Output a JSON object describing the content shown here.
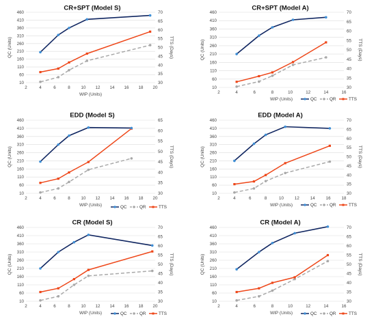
{
  "colors": {
    "QC": "#0f2560",
    "QR": "#a8a8a8",
    "TTS": "#ee4618",
    "QC_marker": "#3e8fd6",
    "QR_marker": "#a8a8a8",
    "TTS_marker": "#ee4618"
  },
  "chart_data": [
    {
      "type": "line",
      "title": "CR+SPT (Model S)",
      "xlabel": "WIP (Units)",
      "ylabel": "QC (Units)",
      "y2label": "TTS (Days)",
      "xlim": [
        2,
        20
      ],
      "xticks": [
        2,
        4,
        6,
        8,
        10,
        12,
        14,
        16,
        18,
        20
      ],
      "ylim": [
        10,
        460
      ],
      "yticks": [
        "10",
        "60",
        "110",
        "160",
        "210",
        "260",
        "310",
        "360",
        "410",
        "460"
      ],
      "y2lim": [
        30,
        70
      ],
      "y2ticks": [
        "30",
        "35",
        "40",
        "45",
        "50",
        "55",
        "60",
        "65",
        "70"
      ],
      "legend_position": "none",
      "series": [
        {
          "name": "QC",
          "axis": "left",
          "dashed": false,
          "x": [
            4,
            6.5,
            8,
            10.5,
            19.3
          ],
          "y": [
            205,
            315,
            360,
            415,
            440
          ]
        },
        {
          "name": "QR",
          "axis": "left",
          "dashed": true,
          "x": [
            4,
            6.5,
            8,
            10.5,
            19.3
          ],
          "y": [
            15,
            45,
            90,
            150,
            250
          ]
        },
        {
          "name": "TTS",
          "axis": "right",
          "dashed": false,
          "x": [
            4,
            6.5,
            8,
            10.5,
            19.3
          ],
          "y": [
            36,
            38,
            41.5,
            46.5,
            59
          ]
        }
      ]
    },
    {
      "type": "line",
      "title": "CR+SPT (Model A)",
      "xlabel": "WIP (Units)",
      "ylabel": "QC (Units)",
      "y2label": "TTS (Days)",
      "xlim": [
        2,
        16
      ],
      "xticks": [
        2,
        4,
        6,
        8,
        10,
        12,
        14,
        16
      ],
      "ylim": [
        10,
        460
      ],
      "yticks": [
        "10",
        "60",
        "110",
        "160",
        "210",
        "260",
        "310",
        "360",
        "410",
        "460"
      ],
      "y2lim": [
        30,
        70
      ],
      "y2ticks": [
        "30",
        "35",
        "40",
        "45",
        "50",
        "55",
        "60",
        "65",
        "70"
      ],
      "legend_position": "bottom-right",
      "legend": [
        "QC",
        "QR",
        "TTS"
      ],
      "series": [
        {
          "name": "QC",
          "axis": "left",
          "dashed": false,
          "x": [
            4,
            6.5,
            8,
            10.3,
            14
          ],
          "y": [
            210,
            320,
            370,
            415,
            430
          ]
        },
        {
          "name": "QR",
          "axis": "left",
          "dashed": true,
          "x": [
            4,
            6.5,
            8,
            10.3,
            14
          ],
          "y": [
            15,
            45,
            80,
            145,
            190
          ]
        },
        {
          "name": "TTS",
          "axis": "right",
          "dashed": false,
          "x": [
            4,
            6.5,
            8,
            10.3,
            14
          ],
          "y": [
            33,
            36,
            38,
            43.5,
            54
          ]
        }
      ]
    },
    {
      "type": "line",
      "title": "EDD (Model S)",
      "xlabel": "WIP (Units)",
      "ylabel": "QC (Units)",
      "y2label": "TTS (Days)",
      "xlim": [
        2,
        20
      ],
      "xticks": [
        2,
        4,
        6,
        8,
        10,
        12,
        14,
        16,
        18,
        20
      ],
      "ylim": [
        10,
        460
      ],
      "yticks": [
        "10",
        "60",
        "110",
        "160",
        "210",
        "260",
        "310",
        "360",
        "410",
        "460"
      ],
      "y2lim": [
        30,
        65
      ],
      "y2ticks": [
        "30",
        "35",
        "40",
        "45",
        "50",
        "55",
        "60",
        "65"
      ],
      "legend_position": "bottom-right",
      "legend": [
        "QC",
        "QR",
        "TTS"
      ],
      "series": [
        {
          "name": "QC",
          "axis": "left",
          "dashed": false,
          "x": [
            4,
            6.5,
            8,
            10.7,
            16.7
          ],
          "y": [
            205,
            310,
            365,
            415,
            412
          ]
        },
        {
          "name": "QR",
          "axis": "left",
          "dashed": true,
          "x": [
            4,
            6.5,
            8,
            10.7,
            16.7
          ],
          "y": [
            15,
            40,
            80,
            155,
            225
          ]
        },
        {
          "name": "TTS",
          "axis": "right",
          "dashed": false,
          "x": [
            4,
            6.5,
            8,
            10.7,
            16.7
          ],
          "y": [
            35,
            37,
            40,
            45,
            61
          ]
        }
      ]
    },
    {
      "type": "line",
      "title": "EDD (Model A)",
      "xlabel": "WIP (Units)",
      "ylabel": "QC (Units)",
      "y2label": "TTS (Days)",
      "xlim": [
        2,
        18
      ],
      "xticks": [
        2,
        4,
        6,
        8,
        10,
        12,
        14,
        16,
        18
      ],
      "ylim": [
        10,
        460
      ],
      "yticks": [
        "10",
        "60",
        "110",
        "160",
        "210",
        "260",
        "310",
        "360",
        "410",
        "460"
      ],
      "y2lim": [
        30,
        70
      ],
      "y2ticks": [
        "30",
        "35",
        "40",
        "45",
        "50",
        "55",
        "60",
        "65",
        "70"
      ],
      "legend_position": "bottom-right",
      "legend": [
        "QC",
        "QR",
        "TTS"
      ],
      "series": [
        {
          "name": "QC",
          "axis": "left",
          "dashed": false,
          "x": [
            4,
            6.5,
            8,
            10.5,
            16.2
          ],
          "y": [
            210,
            315,
            370,
            420,
            410
          ]
        },
        {
          "name": "QR",
          "axis": "left",
          "dashed": true,
          "x": [
            4,
            6.5,
            8,
            10.5,
            16.2
          ],
          "y": [
            15,
            40,
            85,
            135,
            205
          ]
        },
        {
          "name": "TTS",
          "axis": "right",
          "dashed": false,
          "x": [
            4,
            6.5,
            8,
            10.5,
            16.2
          ],
          "y": [
            35,
            36.5,
            40,
            46.5,
            56
          ]
        }
      ]
    },
    {
      "type": "line",
      "title": "CR (Model S)",
      "xlabel": "WIP (Units)",
      "ylabel": "QC (Units)",
      "y2label": "TTS (Days)",
      "xlim": [
        2,
        20
      ],
      "xticks": [
        2,
        4,
        6,
        8,
        10,
        12,
        14,
        16,
        18,
        20
      ],
      "ylim": [
        10,
        460
      ],
      "yticks": [
        "10",
        "60",
        "110",
        "160",
        "210",
        "260",
        "310",
        "360",
        "410",
        "460"
      ],
      "y2lim": [
        30,
        70
      ],
      "y2ticks": [
        "30",
        "35",
        "40",
        "45",
        "50",
        "55",
        "60",
        "65",
        "70"
      ],
      "legend_position": "bottom-right",
      "legend": [
        "QC",
        "QR",
        "TTS"
      ],
      "series": [
        {
          "name": "QC",
          "axis": "left",
          "dashed": false,
          "x": [
            4,
            6.5,
            8.7,
            10.7,
            19.6
          ],
          "y": [
            210,
            310,
            370,
            415,
            350
          ]
        },
        {
          "name": "QR",
          "axis": "left",
          "dashed": true,
          "x": [
            4,
            6.5,
            8.7,
            10.7,
            19.6
          ],
          "y": [
            15,
            40,
            110,
            165,
            195
          ]
        },
        {
          "name": "TTS",
          "axis": "right",
          "dashed": false,
          "x": [
            4,
            6.5,
            8.7,
            10.7,
            19.6
          ],
          "y": [
            35,
            37,
            42,
            47,
            57
          ]
        }
      ]
    },
    {
      "type": "line",
      "title": "CR (Model A)",
      "xlabel": "WIP (Units)",
      "ylabel": "QC (Units)",
      "y2label": "TTS (Days)",
      "xlim": [
        2,
        16
      ],
      "xticks": [
        2,
        4,
        6,
        8,
        10,
        12,
        14,
        16
      ],
      "ylim": [
        10,
        460
      ],
      "yticks": [
        "10",
        "60",
        "110",
        "160",
        "210",
        "260",
        "310",
        "360",
        "410",
        "460"
      ],
      "y2lim": [
        30,
        70
      ],
      "y2ticks": [
        "30",
        "35",
        "40",
        "45",
        "50",
        "55",
        "60",
        "65",
        "70"
      ],
      "legend_position": "bottom-right",
      "legend": [
        "QC",
        "QR",
        "TTS"
      ],
      "series": [
        {
          "name": "QC",
          "axis": "left",
          "dashed": false,
          "x": [
            4,
            6.5,
            8,
            10.5,
            14.2
          ],
          "y": [
            205,
            310,
            365,
            425,
            465
          ]
        },
        {
          "name": "QR",
          "axis": "left",
          "dashed": true,
          "x": [
            4,
            6.5,
            8,
            10.5,
            14.2
          ],
          "y": [
            15,
            40,
            75,
            145,
            255
          ]
        },
        {
          "name": "TTS",
          "axis": "right",
          "dashed": false,
          "x": [
            4,
            6.5,
            8,
            10.5,
            14.2
          ],
          "y": [
            35,
            37,
            40,
            43,
            55
          ]
        }
      ]
    }
  ]
}
